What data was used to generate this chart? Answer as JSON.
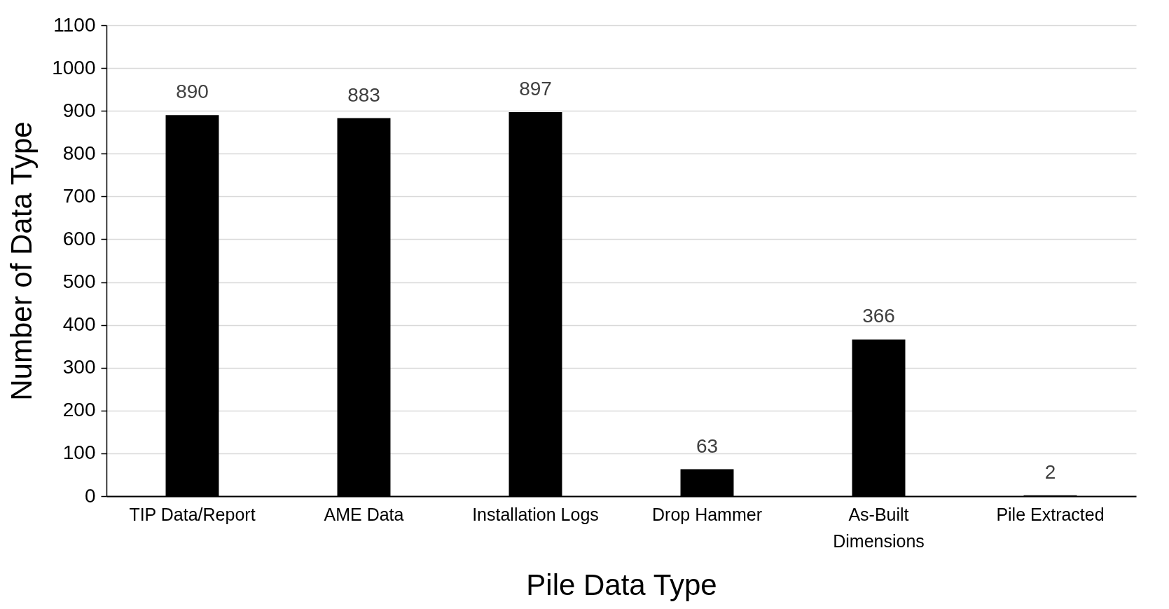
{
  "chart_data": {
    "type": "bar",
    "xlabel": "Pile Data Type",
    "ylabel": "Number of Data Type",
    "categories": [
      "TIP Data/Report",
      "AME Data",
      "Installation Logs",
      "Drop Hammer",
      "As-Built Dimensions",
      "Pile Extracted"
    ],
    "values": [
      890,
      883,
      897,
      63,
      366,
      2
    ],
    "color": "#000000",
    "ylim": [
      0,
      1100
    ],
    "yticks": [
      0,
      100,
      200,
      300,
      400,
      500,
      600,
      700,
      800,
      900,
      1000,
      1100
    ],
    "grid": "y",
    "data_labels": true
  }
}
